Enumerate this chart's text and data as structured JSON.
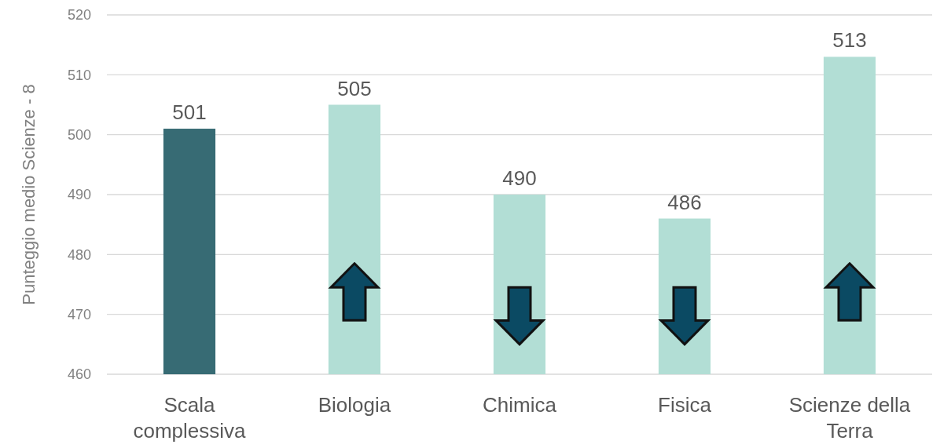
{
  "chart_data": {
    "type": "bar",
    "ylabel": "Punteggio medio Scienze - 8",
    "categories": [
      "Scala complessiva",
      "Biologia",
      "Chimica",
      "Fisica",
      "Scienze della Terra"
    ],
    "values": [
      501,
      505,
      490,
      486,
      513
    ],
    "colors": [
      "#376b74",
      "#b2ded5",
      "#b2ded5",
      "#b2ded5",
      "#b2ded5"
    ],
    "ylim": [
      460,
      520
    ],
    "yticks": [
      460,
      470,
      480,
      490,
      500,
      510,
      520
    ],
    "grid": "y",
    "data_labels": true
  }
}
